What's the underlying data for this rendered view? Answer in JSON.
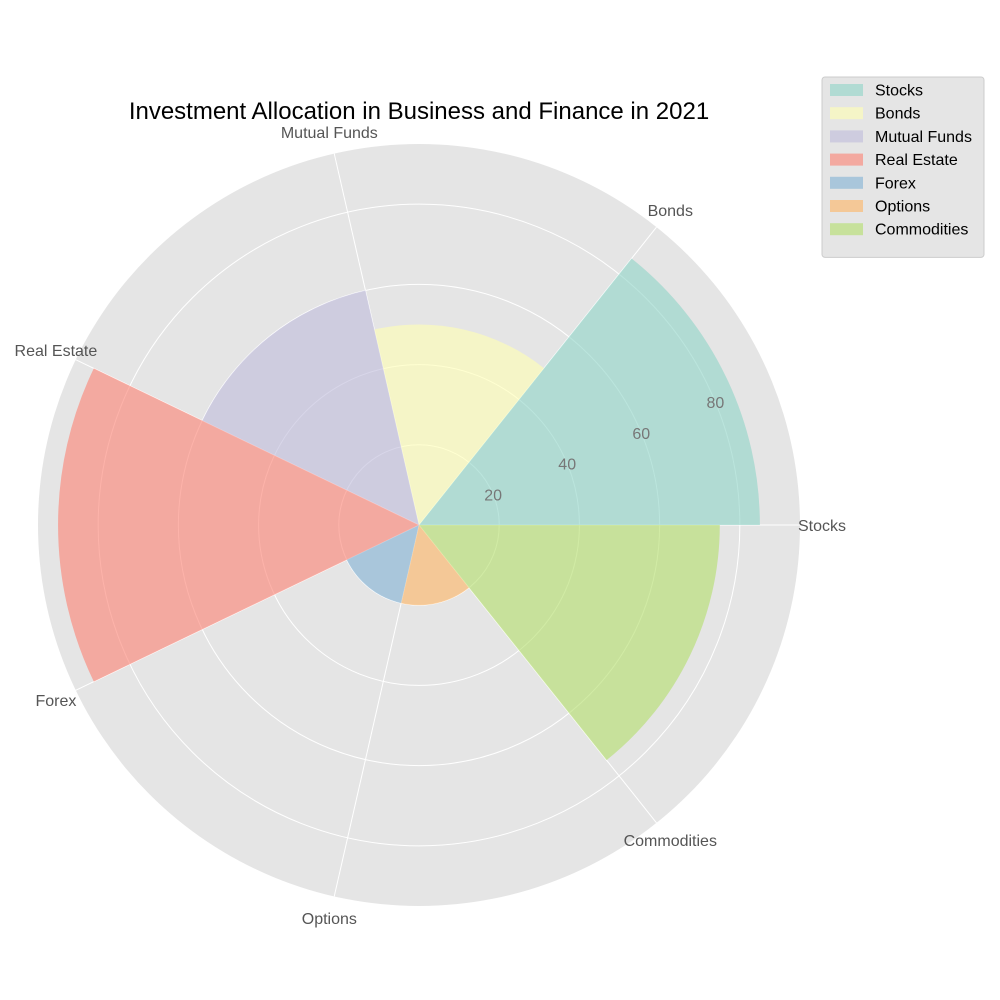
{
  "chart_data": {
    "type": "polar-bar",
    "title": "Investment Allocation in Business and Finance in 2021",
    "categories": [
      "Stocks",
      "Bonds",
      "Mutual Funds",
      "Real Estate",
      "Forex",
      "Options",
      "Commodities"
    ],
    "values": [
      85,
      50,
      60,
      90,
      20,
      20,
      75
    ],
    "colors": [
      "#8dd3c7",
      "#ffffb3",
      "#bebada",
      "#fb8072",
      "#80b1d3",
      "#fdb462",
      "#b3de69"
    ],
    "rlim": [
      0,
      95
    ],
    "rticks": [
      20,
      40,
      60,
      80
    ],
    "rtick_labels": [
      "20",
      "40",
      "60",
      "80"
    ],
    "grid": true,
    "legend_position": "top-right",
    "background": "#e5e5e5",
    "grid_color": "#ffffff"
  }
}
